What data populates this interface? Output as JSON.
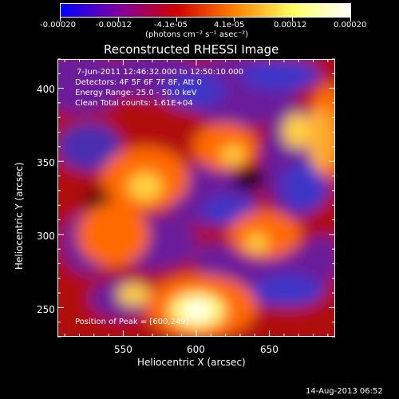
{
  "colorbar": {
    "tick_labels": [
      "-0.00020",
      "-0.00012",
      "-4.1e-05",
      "4.1e-05",
      "0.00012",
      "0.00020"
    ],
    "units": "(photons cm⁻² s⁻¹ asec⁻²)",
    "range": [
      -0.0002,
      0.0002
    ],
    "colors": [
      "#0000ff",
      "#8000a0",
      "#d00000",
      "#ff8000",
      "#ffff60",
      "#ffffff"
    ]
  },
  "plot": {
    "title": "Reconstructed RHESSI Image",
    "xlabel": "Heliocentric X (arcsec)",
    "ylabel": "Heliocentric Y (arcsec)",
    "x_ticks": [
      "550",
      "600",
      "650"
    ],
    "y_ticks": [
      "400",
      "350",
      "300",
      "250"
    ],
    "xlim": [
      505,
      695
    ],
    "ylim": [
      230,
      420
    ],
    "annotations": [
      "7-Jun-2011 12:46:32.000 to 12:50:10.000",
      "Detectors: 4F 5F 6F 7F 8F, Att 0",
      "Energy Range: 25.0 - 50.0 keV",
      "Clean     Total counts: 1.61E+04"
    ],
    "peak_label": "Position of Peak = [600,249]",
    "peak": [
      600,
      249
    ]
  },
  "footer": {
    "timestamp": "14-Aug-2013 06:52"
  }
}
